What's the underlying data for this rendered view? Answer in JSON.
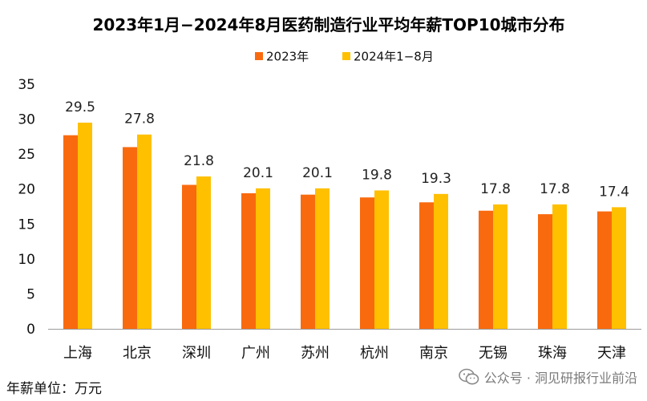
{
  "chart_data": {
    "type": "bar",
    "title": "2023年1月−2024年8月医药制造行业平均年薪TOP10城市分布",
    "categories": [
      "上海",
      "北京",
      "深圳",
      "广州",
      "苏州",
      "杭州",
      "南京",
      "无锡",
      "珠海",
      "天津"
    ],
    "series": [
      {
        "name": "2023年",
        "values": [
          27.7,
          26.0,
          20.6,
          19.4,
          19.2,
          18.8,
          18.1,
          16.9,
          16.4,
          16.8
        ],
        "color": "#F96A0E"
      },
      {
        "name": "2024年1−8月",
        "values": [
          29.5,
          27.8,
          21.8,
          20.1,
          20.1,
          19.8,
          19.3,
          17.8,
          17.8,
          17.4
        ],
        "color": "#FFC000"
      }
    ],
    "data_labels": [
      "29.5",
      "27.8",
      "21.8",
      "20.1",
      "20.1",
      "19.8",
      "19.3",
      "17.8",
      "17.8",
      "17.4"
    ],
    "ylim": [
      0,
      35
    ],
    "yticks": [
      0,
      5,
      10,
      15,
      20,
      25,
      30,
      35
    ],
    "grid": false,
    "legend_position": "top-center",
    "xlabel": "",
    "ylabel": ""
  },
  "footer": {
    "unit_label": "年薪单位：万元",
    "watermark": "公众号 · 洞见研报行业前沿"
  }
}
